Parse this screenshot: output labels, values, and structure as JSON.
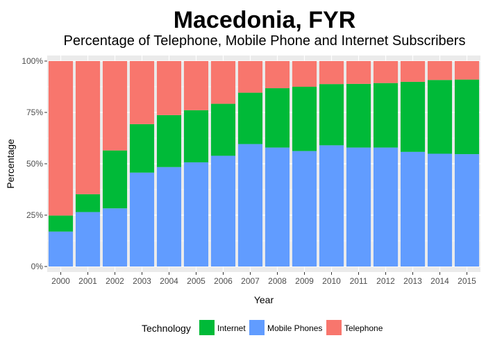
{
  "chart_data": {
    "type": "bar",
    "stacked": true,
    "percent": true,
    "title": "Macedonia, FYR",
    "subtitle": "Percentage of Telephone, Mobile Phone and Internet Subscribers",
    "xlabel": "Year",
    "ylabel": "Percentage",
    "ylim": [
      0,
      100
    ],
    "yticks": [
      "0%",
      "25%",
      "50%",
      "75%",
      "100%"
    ],
    "grid": true,
    "legend_position": "bottom",
    "legend_title": "Technology",
    "categories": [
      "2000",
      "2001",
      "2002",
      "2003",
      "2004",
      "2005",
      "2006",
      "2007",
      "2008",
      "2009",
      "2010",
      "2011",
      "2012",
      "2013",
      "2014",
      "2015"
    ],
    "series": [
      {
        "name": "Mobile Phones",
        "color": "#619CFF",
        "values": [
          17.0,
          26.5,
          28.3,
          45.7,
          48.4,
          50.7,
          53.9,
          59.6,
          57.9,
          56.2,
          59.0,
          57.9,
          57.9,
          55.8,
          54.9,
          54.7
        ]
      },
      {
        "name": "Internet",
        "color": "#00BA38",
        "values": [
          7.8,
          8.7,
          28.2,
          23.6,
          25.3,
          25.4,
          25.3,
          25.0,
          28.9,
          31.3,
          29.8,
          31.0,
          31.4,
          34.1,
          35.9,
          36.3
        ]
      },
      {
        "name": "Telephone",
        "color": "#F8766D",
        "values": [
          75.2,
          64.8,
          43.5,
          30.7,
          26.3,
          23.9,
          20.8,
          15.4,
          13.2,
          12.5,
          11.2,
          11.1,
          10.7,
          10.1,
          9.2,
          9.0
        ]
      }
    ],
    "legend_order": [
      "Internet",
      "Mobile Phones",
      "Telephone"
    ],
    "panel_background": "#EBEBEB",
    "grid_color": "#FFFFFF"
  }
}
